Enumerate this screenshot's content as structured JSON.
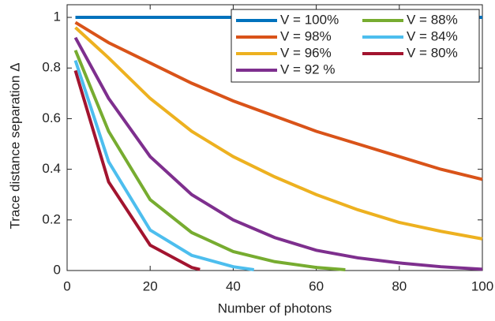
{
  "chart_data": {
    "type": "line",
    "xlabel": "Number of photons",
    "ylabel": "Trace distance separation  Δ",
    "xlim": [
      0,
      100
    ],
    "xticks": [
      0,
      20,
      40,
      60,
      80,
      100
    ],
    "ylim": [
      0,
      1.05
    ],
    "yticks": [
      0,
      0.2,
      0.4,
      0.6,
      0.8,
      1
    ],
    "legend": "upper right",
    "series": [
      {
        "name": "V = 100%",
        "color": "#0072bd",
        "x": [
          2,
          100
        ],
        "values": [
          1,
          1
        ]
      },
      {
        "name": "V = 98%",
        "color": "#d95319",
        "x": [
          2,
          10,
          20,
          30,
          40,
          50,
          60,
          70,
          80,
          90,
          100
        ],
        "values": [
          0.98,
          0.9,
          0.82,
          0.74,
          0.67,
          0.61,
          0.55,
          0.5,
          0.45,
          0.4,
          0.36
        ]
      },
      {
        "name": "V = 96%",
        "color": "#edb120",
        "x": [
          2,
          10,
          20,
          30,
          40,
          50,
          60,
          70,
          80,
          90,
          100
        ],
        "values": [
          0.96,
          0.84,
          0.68,
          0.55,
          0.45,
          0.37,
          0.3,
          0.24,
          0.19,
          0.155,
          0.125
        ]
      },
      {
        "name": "V = 92 %",
        "color": "#7e2f8e",
        "x": [
          2,
          10,
          20,
          30,
          40,
          50,
          60,
          70,
          80,
          90,
          100
        ],
        "values": [
          0.92,
          0.68,
          0.45,
          0.3,
          0.2,
          0.13,
          0.08,
          0.05,
          0.03,
          0.015,
          0.005
        ]
      },
      {
        "name": "V = 88%",
        "color": "#77ac30",
        "x": [
          2,
          10,
          20,
          30,
          40,
          50,
          60,
          67
        ],
        "values": [
          0.87,
          0.55,
          0.28,
          0.15,
          0.075,
          0.035,
          0.012,
          0.003
        ]
      },
      {
        "name": "V = 84%",
        "color": "#4dbeee",
        "x": [
          2,
          10,
          20,
          30,
          40,
          45
        ],
        "values": [
          0.83,
          0.43,
          0.16,
          0.06,
          0.015,
          0.003
        ]
      },
      {
        "name": "V = 80%",
        "color": "#a2142f",
        "x": [
          2,
          10,
          20,
          30,
          32
        ],
        "values": [
          0.79,
          0.35,
          0.1,
          0.012,
          0.004
        ]
      }
    ]
  }
}
